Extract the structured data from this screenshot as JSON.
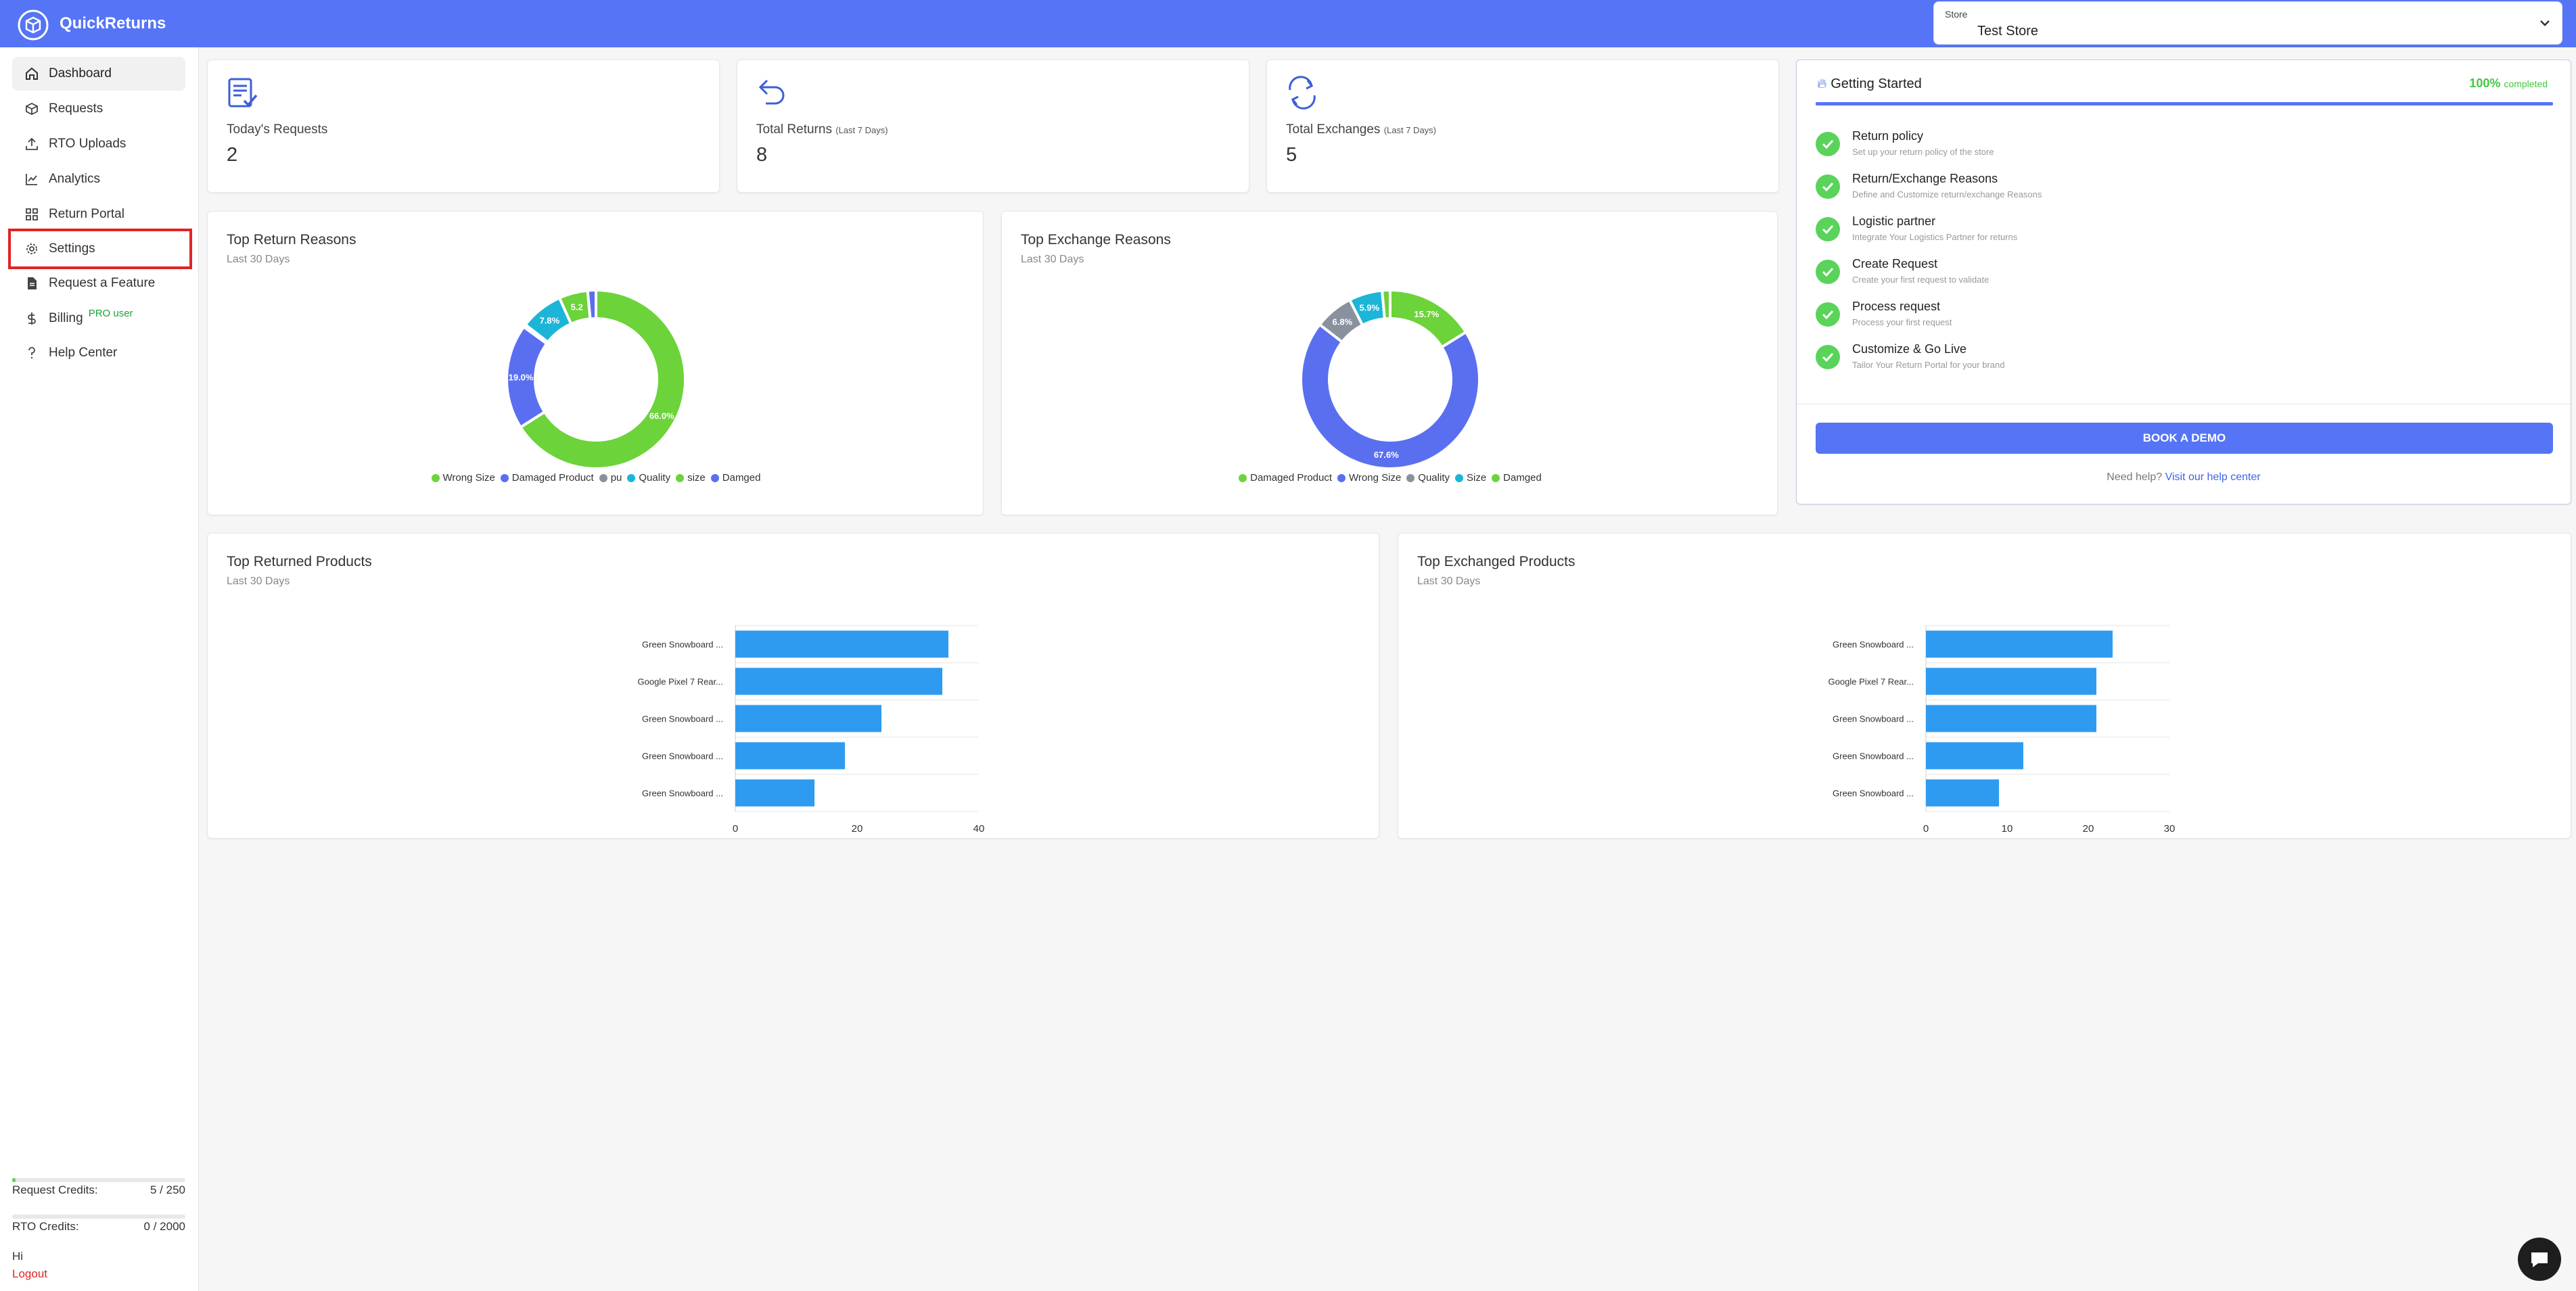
{
  "app": {
    "title": "QuickReturns",
    "logo_icon": "package-box-icon"
  },
  "store": {
    "label": "Store",
    "value": "Test Store"
  },
  "sidebar": {
    "items": [
      {
        "label": "Dashboard",
        "icon": "home-icon",
        "active": true
      },
      {
        "label": "Requests",
        "icon": "box-icon"
      },
      {
        "label": "RTO Uploads",
        "icon": "upload-icon"
      },
      {
        "label": "Analytics",
        "icon": "chart-line-icon"
      },
      {
        "label": "Return Portal",
        "icon": "grid-icon"
      },
      {
        "label": "Settings",
        "icon": "gear-icon"
      },
      {
        "label": "Request a Feature",
        "icon": "document-icon"
      },
      {
        "label": "Billing",
        "icon": "dollar-icon",
        "badge": "PRO user"
      },
      {
        "label": "Help Center",
        "icon": "question-icon"
      }
    ],
    "credits": {
      "request": {
        "label": "Request Credits:",
        "value": "5 / 250",
        "fraction": 0.02
      },
      "rto": {
        "label": "RTO Credits:",
        "value": "0 / 2000",
        "fraction": 0
      }
    },
    "greeting": "Hi",
    "logout": "Logout"
  },
  "stats": [
    {
      "label": "Today's Requests",
      "sub": "",
      "value": "2",
      "icon": "clipboard-check-icon"
    },
    {
      "label": "Total Returns",
      "sub": "(Last 7 Days)",
      "value": "8",
      "icon": "return-arrow-icon"
    },
    {
      "label": "Total Exchanges",
      "sub": "(Last 7 Days)",
      "value": "5",
      "icon": "exchange-arrows-icon"
    }
  ],
  "getting_started": {
    "title": "Getting Started",
    "icon": "flame-icon",
    "percent": "100%",
    "percent_suffix": "completed",
    "progress": 1.0,
    "steps": [
      {
        "title": "Return policy",
        "desc": "Set up your return policy of the store"
      },
      {
        "title": "Return/Exchange Reasons",
        "desc": "Define and Customize return/exchange Reasons"
      },
      {
        "title": "Logistic partner",
        "desc": "Integrate Your Logistics Partner for returns"
      },
      {
        "title": "Create Request",
        "desc": "Create your first request to validate"
      },
      {
        "title": "Process request",
        "desc": "Process your first request"
      },
      {
        "title": "Customize & Go Live",
        "desc": "Tailor Your Return Portal for your brand"
      }
    ],
    "cta": "BOOK A DEMO",
    "help_prefix": "Need help?",
    "help_link": "Visit our help center"
  },
  "colors": {
    "primary": "#5574f6",
    "green": "#6cd33a",
    "blue": "#5a6ff0",
    "gray": "#8a919e",
    "cyan": "#1cb5d8",
    "bar": "#2e9bf0"
  },
  "chart_data": [
    {
      "type": "pie",
      "title": "Top Return Reasons",
      "subtitle": "Last 30 Days",
      "slices": [
        {
          "name": "Wrong Size",
          "value": 66.0,
          "label": "66.0%",
          "color": "#6cd33a"
        },
        {
          "name": "Damaged Product",
          "value": 19.0,
          "label": "19.0%",
          "color": "#5a6ff0"
        },
        {
          "name": "pu",
          "value": 0.5,
          "label": "",
          "color": "#8a919e"
        },
        {
          "name": "Quality",
          "value": 7.8,
          "label": "7.8%",
          "color": "#1cb5d8"
        },
        {
          "name": "size",
          "value": 5.2,
          "label": "5.2",
          "color": "#6cd33a"
        },
        {
          "name": "Damged",
          "value": 1.5,
          "label": "",
          "color": "#5a6ff0"
        }
      ]
    },
    {
      "type": "pie",
      "title": "Top Exchange Reasons",
      "subtitle": "Last 30 Days",
      "slices": [
        {
          "name": "Damaged Product",
          "value": 15.7,
          "label": "15.7%",
          "color": "#6cd33a"
        },
        {
          "name": "Wrong Size",
          "value": 67.6,
          "label": "67.6%",
          "color": "#5a6ff0"
        },
        {
          "name": "Quality",
          "value": 6.8,
          "label": "6.8%",
          "color": "#8a919e"
        },
        {
          "name": "Size",
          "value": 5.9,
          "label": "5.9%",
          "color": "#1cb5d8"
        },
        {
          "name": "Damged",
          "value": 1.4,
          "label": "",
          "color": "#6cd33a"
        }
      ]
    },
    {
      "type": "bar",
      "orientation": "horizontal",
      "title": "Top Returned Products",
      "subtitle": "Last 30 Days",
      "categories": [
        "Green Snowboard ...",
        "Google Pixel 7 Rear...",
        "Green Snowboard ...",
        "Green Snowboard ...",
        "Green Snowboard ..."
      ],
      "values": [
        35,
        34,
        24,
        18,
        13
      ],
      "xlim": [
        0,
        40
      ],
      "ticks": [
        0,
        20,
        40
      ],
      "color": "#2e9bf0"
    },
    {
      "type": "bar",
      "orientation": "horizontal",
      "title": "Top Exchanged Products",
      "subtitle": "Last 30 Days",
      "categories": [
        "Green Snowboard ...",
        "Google Pixel 7 Rear...",
        "Green Snowboard ...",
        "Green Snowboard ...",
        "Green Snowboard ..."
      ],
      "values": [
        23,
        21,
        21,
        12,
        9
      ],
      "xlim": [
        0,
        30
      ],
      "ticks": [
        0,
        10,
        20,
        30
      ],
      "color": "#2e9bf0"
    }
  ]
}
